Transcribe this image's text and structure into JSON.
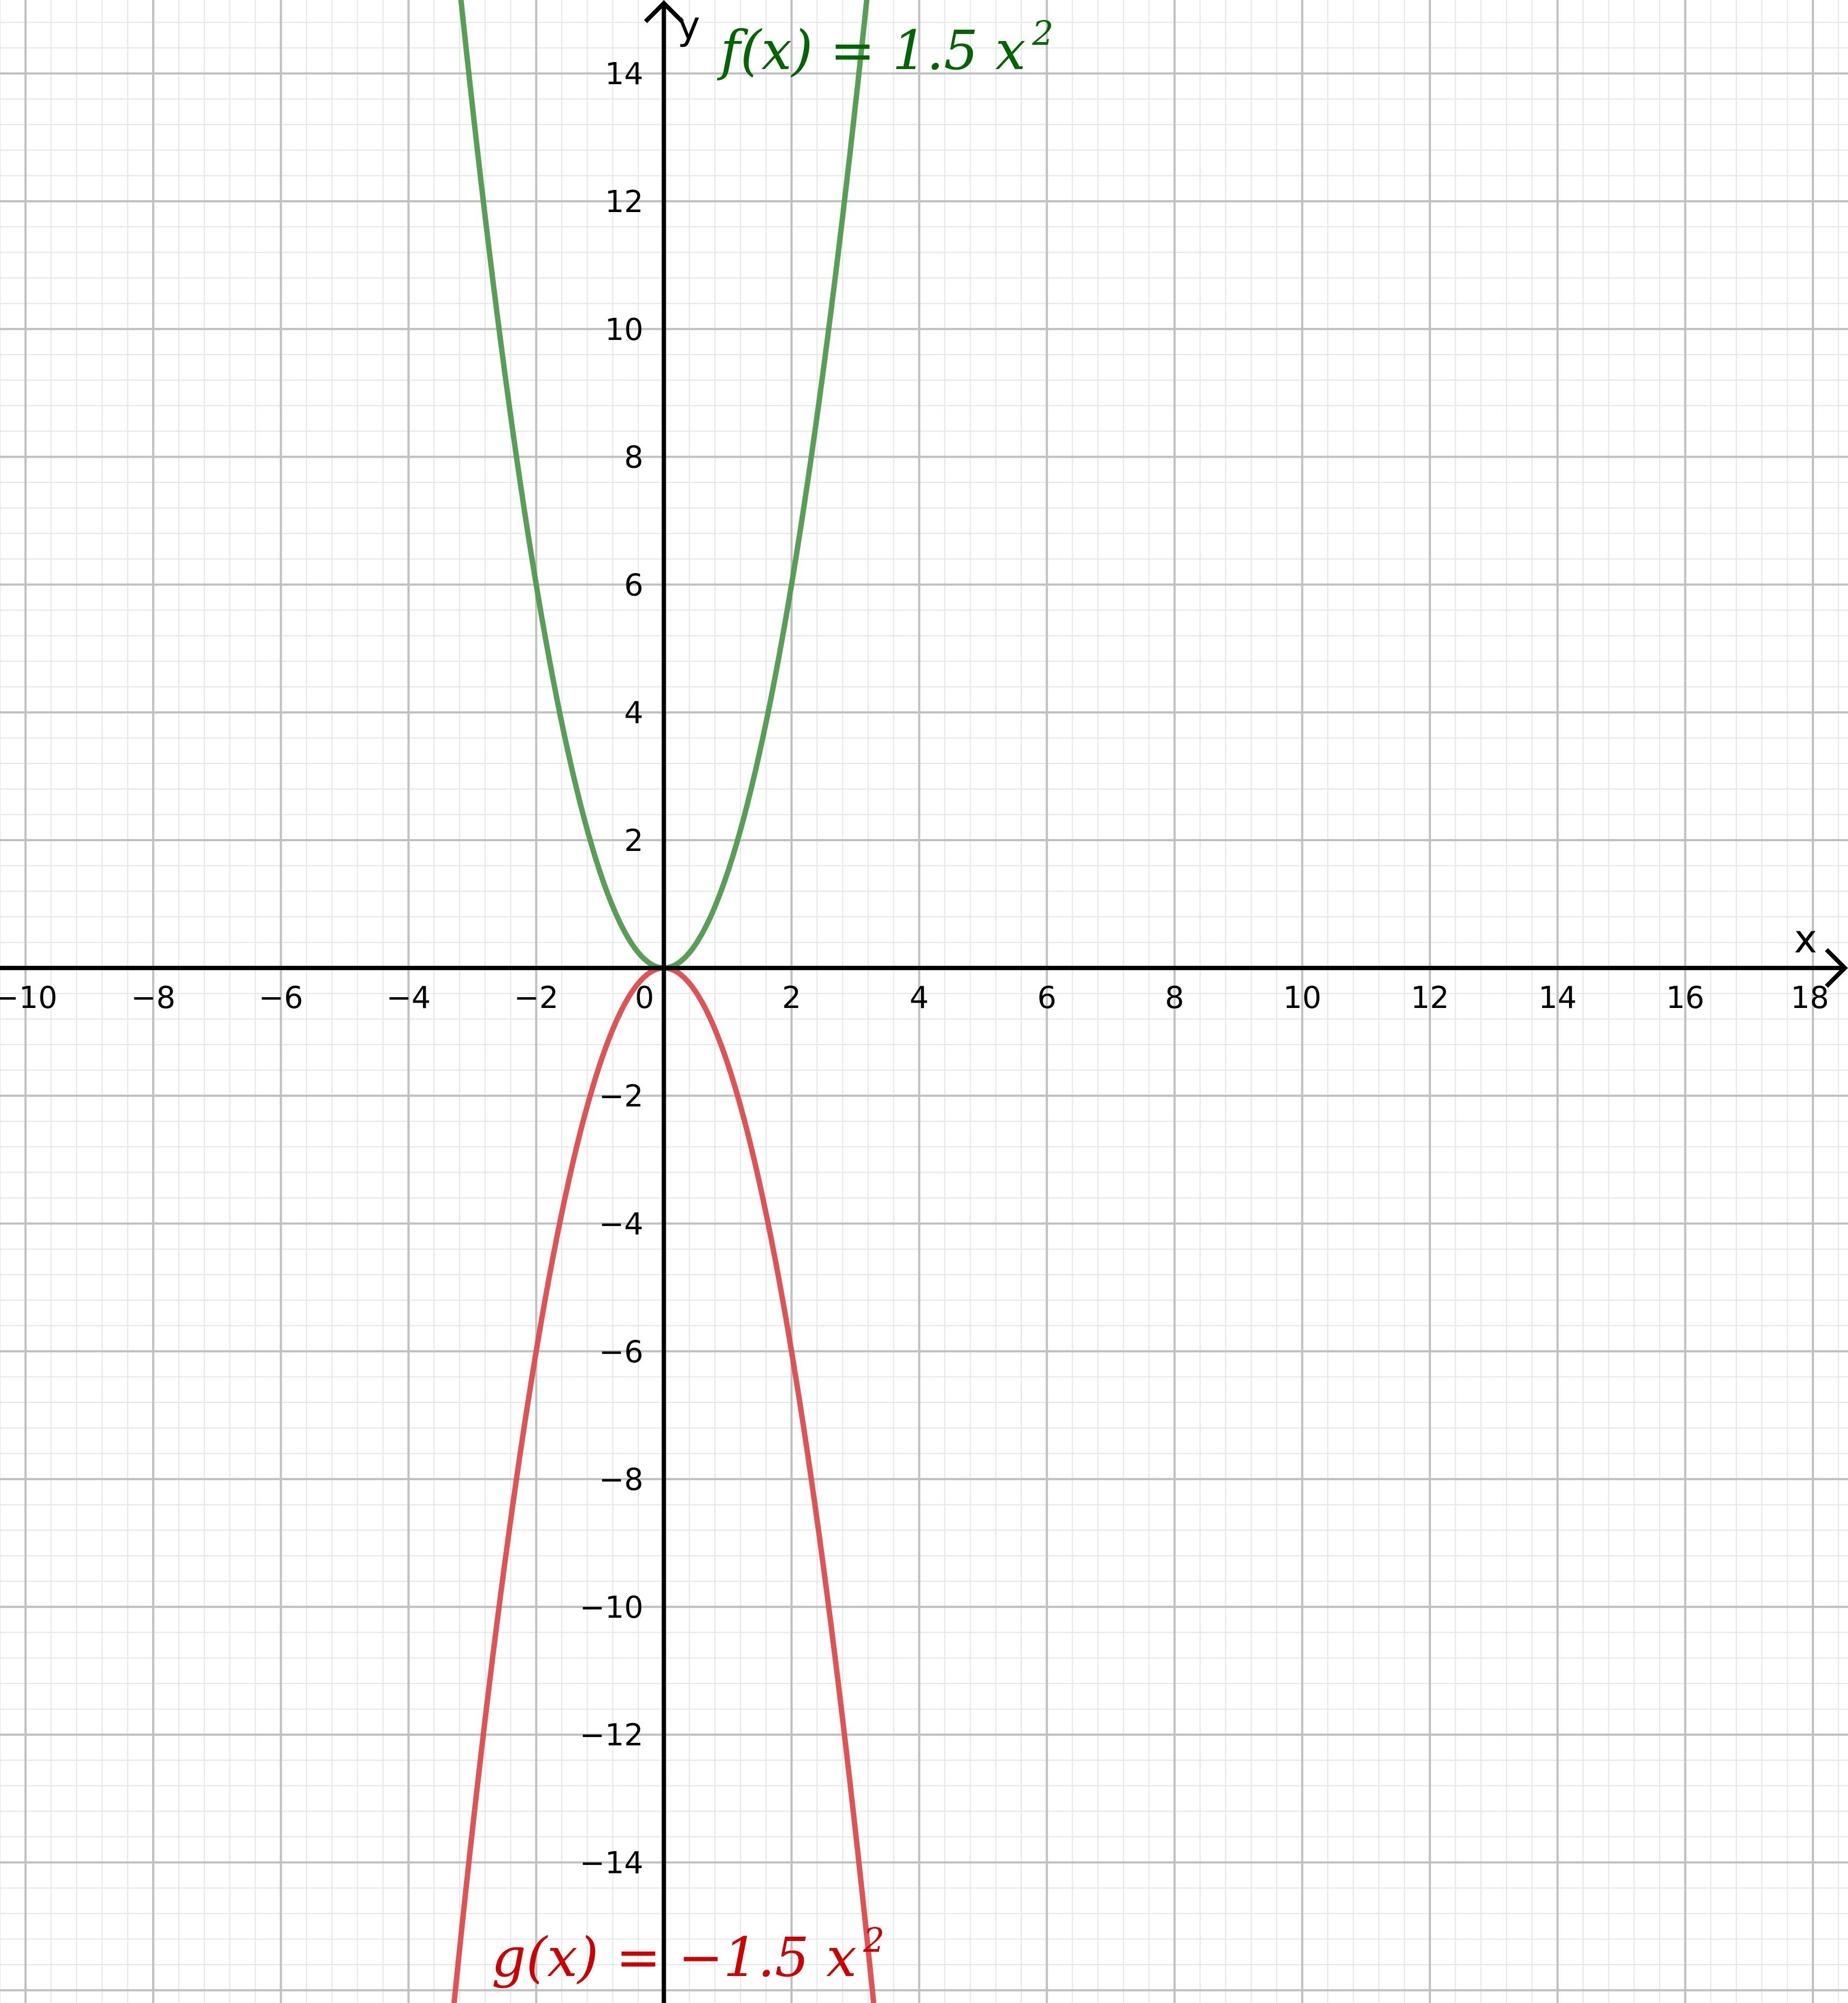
{
  "chart_data": {
    "type": "line",
    "title": "",
    "xlabel": "x",
    "ylabel": "y",
    "xlim": [
      -10.4,
      18.55
    ],
    "ylim": [
      -16.2,
      15.15
    ],
    "grid": true,
    "x_ticks": [
      -10,
      -8,
      -6,
      -4,
      -2,
      0,
      2,
      4,
      6,
      8,
      10,
      12,
      14,
      16,
      18
    ],
    "y_ticks": [
      -14,
      -12,
      -10,
      -8,
      -6,
      -4,
      -2,
      2,
      4,
      6,
      8,
      10,
      12,
      14
    ],
    "series": [
      {
        "name": "f(x) = 1.5 x²",
        "label_parts": [
          "f(x) = 1.5 x",
          "2"
        ],
        "coefficient": 1.5,
        "color": "#4e9a4b",
        "label_color": "#006400"
      },
      {
        "name": "g(x) = −1.5 x²",
        "label_parts": [
          "g(x) = −1.5 x",
          "2"
        ],
        "coefficient": -1.5,
        "color": "#dc4a4a",
        "label_color": "#cc0000"
      }
    ]
  }
}
